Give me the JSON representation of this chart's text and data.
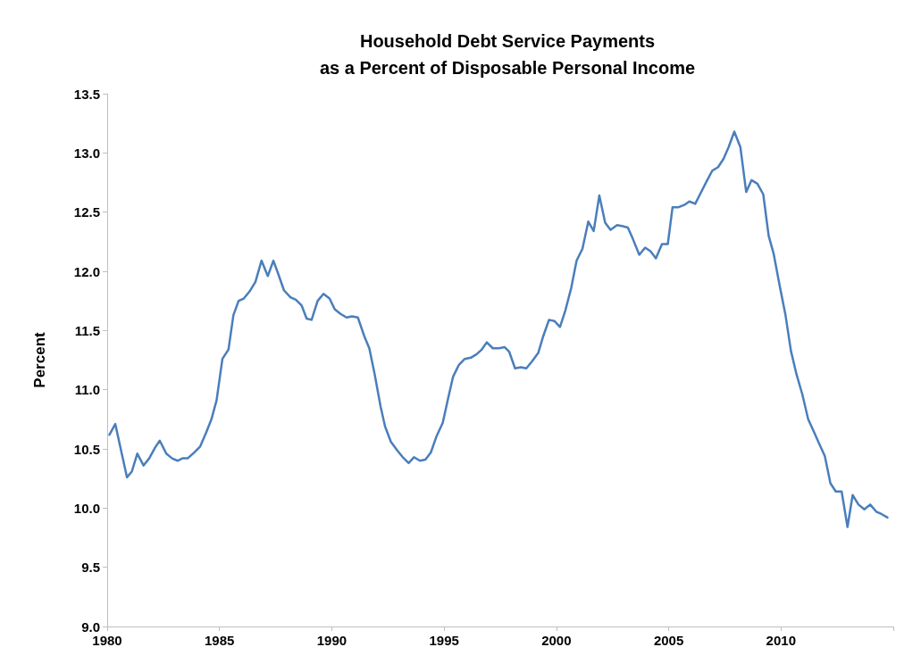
{
  "chart_data": {
    "type": "line",
    "title": "Household Debt Service Payments\nas a Percent of Disposable Personal Income",
    "ylabel": "Percent",
    "xlim": [
      1980,
      2015
    ],
    "xticks": [
      1980,
      1985,
      1990,
      1995,
      2000,
      2005,
      2010,
      {
        "value": 2015,
        "label": null
      }
    ],
    "ylim": [
      9,
      13.5
    ],
    "yticks": [
      {
        "value": 9,
        "label": "9.0"
      },
      {
        "value": 9.5,
        "label": "9.5"
      },
      {
        "value": 10,
        "label": "10.0"
      },
      {
        "value": 10.5,
        "label": "10.5"
      },
      {
        "value": 11,
        "label": "11.0"
      },
      {
        "value": 11.5,
        "label": "11.5"
      },
      {
        "value": 12,
        "label": "12.0"
      },
      {
        "value": 12.5,
        "label": "12.5"
      },
      {
        "value": 13,
        "label": "13.0"
      },
      {
        "value": 13.5,
        "label": "13.5"
      }
    ],
    "grid": false,
    "marker": "none",
    "line_style": "solid",
    "series": [
      {
        "color": "#4a7ebb",
        "x": [
          1980.1,
          1980.36,
          1980.88,
          1981.1,
          1981.34,
          1981.62,
          1981.87,
          1982.13,
          1982.34,
          1982.63,
          1982.89,
          1983.13,
          1983.35,
          1983.58,
          1983.88,
          1984.14,
          1984.41,
          1984.64,
          1984.87,
          1985.13,
          1985.4,
          1985.62,
          1985.85,
          1986.08,
          1986.34,
          1986.6,
          1986.87,
          1987.15,
          1987.4,
          1987.63,
          1987.87,
          1988.16,
          1988.4,
          1988.66,
          1988.88,
          1989.1,
          1989.37,
          1989.63,
          1989.9,
          1990.13,
          1990.39,
          1990.66,
          1990.9,
          1991.16,
          1991.45,
          1991.67,
          1991.91,
          1992.17,
          1992.37,
          1992.63,
          1992.9,
          1993.16,
          1993.42,
          1993.66,
          1993.92,
          1994.17,
          1994.41,
          1994.67,
          1994.94,
          1995.16,
          1995.4,
          1995.66,
          1995.92,
          1996.19,
          1996.45,
          1996.68,
          1996.9,
          1997.17,
          1997.44,
          1997.69,
          1997.9,
          1998.16,
          1998.42,
          1998.66,
          1998.92,
          1999.19,
          1999.41,
          1999.67,
          1999.91,
          2000.16,
          2000.4,
          2000.66,
          2000.9,
          2001.16,
          2001.42,
          2001.66,
          2001.91,
          2002.17,
          2002.41,
          2002.7,
          2002.96,
          2003.18,
          2003.39,
          2003.69,
          2003.95,
          2004.19,
          2004.43,
          2004.7,
          2004.96,
          2005.17,
          2005.42,
          2005.69,
          2005.92,
          2006.18,
          2006.42,
          2006.69,
          2006.94,
          2007.2,
          2007.44,
          2007.67,
          2007.92,
          2008.19,
          2008.45,
          2008.69,
          2008.95,
          2009.21,
          2009.45,
          2009.67,
          2009.94,
          2010.2,
          2010.44,
          2010.69,
          2010.95,
          2011.21,
          2011.45,
          2011.71,
          2011.95,
          2012.2,
          2012.44,
          2012.7,
          2012.96,
          2013.19,
          2013.45,
          2013.71,
          2013.97,
          2014.24,
          2014.47,
          2014.74
        ],
        "values": [
          10.62,
          10.71,
          10.26,
          10.31,
          10.46,
          10.36,
          10.42,
          10.51,
          10.57,
          10.46,
          10.42,
          10.4,
          10.42,
          10.42,
          10.47,
          10.52,
          10.64,
          10.75,
          10.91,
          11.26,
          11.34,
          11.63,
          11.75,
          11.77,
          11.83,
          11.91,
          12.09,
          11.96,
          12.09,
          11.97,
          11.84,
          11.78,
          11.76,
          11.71,
          11.6,
          11.59,
          11.75,
          11.81,
          11.77,
          11.68,
          11.64,
          11.61,
          11.62,
          11.61,
          11.45,
          11.35,
          11.13,
          10.86,
          10.69,
          10.56,
          10.49,
          10.43,
          10.38,
          10.43,
          10.4,
          10.41,
          10.47,
          10.61,
          10.72,
          10.91,
          11.11,
          11.21,
          11.26,
          11.27,
          11.3,
          11.34,
          11.4,
          11.35,
          11.35,
          11.36,
          11.32,
          11.18,
          11.19,
          11.18,
          11.24,
          11.31,
          11.45,
          11.59,
          11.58,
          11.53,
          11.67,
          11.86,
          12.09,
          12.19,
          12.42,
          12.34,
          12.64,
          12.41,
          12.35,
          12.39,
          12.38,
          12.37,
          12.28,
          12.14,
          12.2,
          12.17,
          12.11,
          12.23,
          12.23,
          12.54,
          12.54,
          12.56,
          12.59,
          12.57,
          12.66,
          12.76,
          12.85,
          12.88,
          12.95,
          13.05,
          13.18,
          13.05,
          12.67,
          12.77,
          12.74,
          12.65,
          12.3,
          12.15,
          11.88,
          11.63,
          11.33,
          11.13,
          10.96,
          10.75,
          10.65,
          10.54,
          10.44,
          10.21,
          10.14,
          10.14,
          9.84,
          10.11,
          10.03,
          9.99,
          10.03,
          9.97,
          9.95,
          9.92
        ]
      }
    ]
  }
}
